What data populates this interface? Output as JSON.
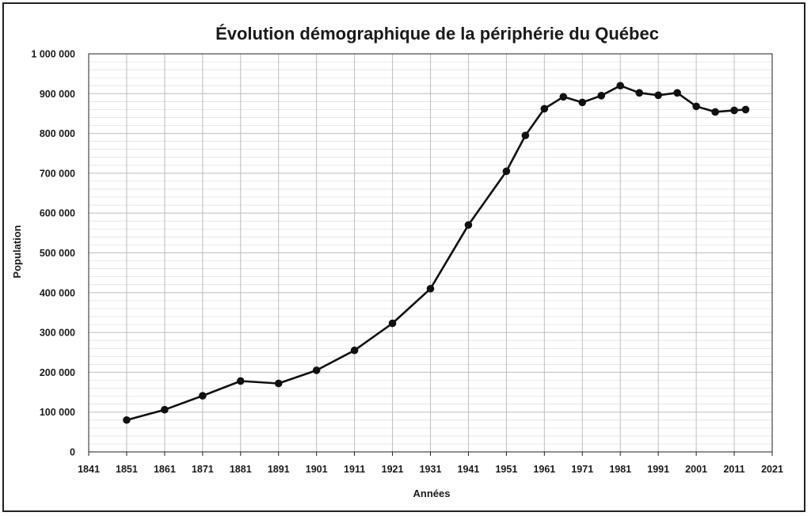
{
  "chart_data": {
    "type": "line",
    "title": "Évolution démographique de la périphérie du Québec",
    "xlabel": "Années",
    "ylabel": "Population",
    "xlim": [
      1841,
      2021
    ],
    "ylim": [
      0,
      1000000
    ],
    "grid": true,
    "legend": "none",
    "x_ticks": [
      1841,
      1851,
      1861,
      1871,
      1881,
      1891,
      1901,
      1911,
      1921,
      1931,
      1941,
      1951,
      1961,
      1971,
      1981,
      1991,
      2001,
      2011,
      2021
    ],
    "y_tick_values": [
      0,
      100000,
      200000,
      300000,
      400000,
      500000,
      600000,
      700000,
      800000,
      900000,
      1000000
    ],
    "y_tick_labels": [
      "0",
      "100 000",
      "200 000",
      "300 000",
      "400 000",
      "500 000",
      "600 000",
      "700 000",
      "800 000",
      "900 000",
      "1 000 000"
    ],
    "series": [
      {
        "x": [
          1851,
          1861,
          1871,
          1881,
          1891,
          1901,
          1911,
          1921,
          1931,
          1941,
          1951,
          1956,
          1961,
          1966,
          1971,
          1976,
          1981,
          1986,
          1991,
          1996,
          2001,
          2006,
          2011,
          2014
        ],
        "values": [
          80000,
          106000,
          141000,
          178000,
          172000,
          205000,
          255000,
          323000,
          410000,
          570000,
          705000,
          795000,
          862000,
          892000,
          878000,
          895000,
          920000,
          902000,
          896000,
          902000,
          868000,
          854000,
          858000,
          860000
        ]
      }
    ],
    "colors": {
      "line": "#111111",
      "grid": "#bdbdbd",
      "minor_grid": "#dcdcdc",
      "frame": "#222222"
    }
  }
}
